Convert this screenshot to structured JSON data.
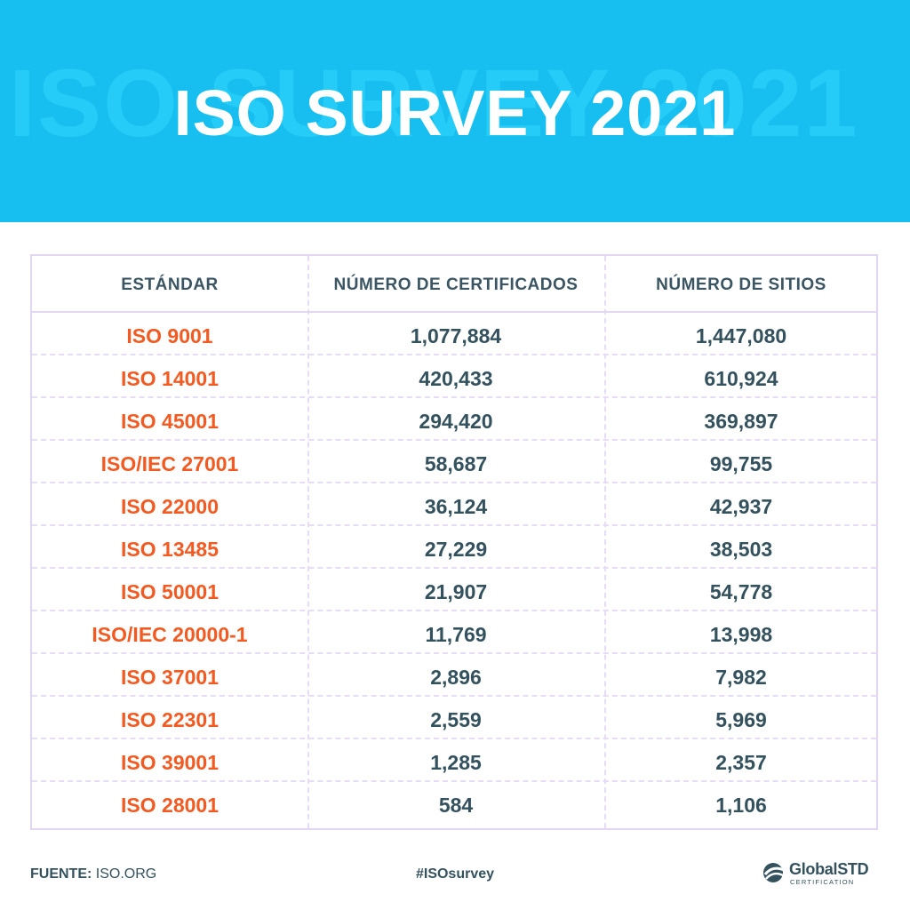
{
  "banner": {
    "title": "ISO SURVEY 2021"
  },
  "table": {
    "headers": [
      "ESTÁNDAR",
      "NÚMERO DE CERTIFICADOS",
      "NÚMERO DE SITIOS"
    ],
    "rows": [
      {
        "standard": "ISO 9001",
        "certificates": "1,077,884",
        "sites": "1,447,080"
      },
      {
        "standard": "ISO 14001",
        "certificates": "420,433",
        "sites": "610,924"
      },
      {
        "standard": "ISO 45001",
        "certificates": "294,420",
        "sites": "369,897"
      },
      {
        "standard": "ISO/IEC 27001",
        "certificates": "58,687",
        "sites": "99,755"
      },
      {
        "standard": "ISO 22000",
        "certificates": "36,124",
        "sites": "42,937"
      },
      {
        "standard": "ISO 13485",
        "certificates": "27,229",
        "sites": "38,503"
      },
      {
        "standard": "ISO 50001",
        "certificates": "21,907",
        "sites": "54,778"
      },
      {
        "standard": "ISO/IEC 20000-1",
        "certificates": "11,769",
        "sites": "13,998"
      },
      {
        "standard": "ISO 37001",
        "certificates": "2,896",
        "sites": "7,982"
      },
      {
        "standard": "ISO 22301",
        "certificates": "2,559",
        "sites": "5,969"
      },
      {
        "standard": "ISO 39001",
        "certificates": "1,285",
        "sites": "2,357"
      },
      {
        "standard": "ISO 28001",
        "certificates": "584",
        "sites": "1,106"
      }
    ]
  },
  "footer": {
    "source_label": "FUENTE:",
    "source_value": "ISO.ORG",
    "hashtag": "#ISOsurvey",
    "logo_text": "GlobalSTD",
    "logo_subtext": "CERTIFICATION"
  },
  "colors": {
    "banner": "#17bff0",
    "standard_text": "#f25a22",
    "number_text": "#34515e",
    "table_border": "#e3d6f3"
  }
}
